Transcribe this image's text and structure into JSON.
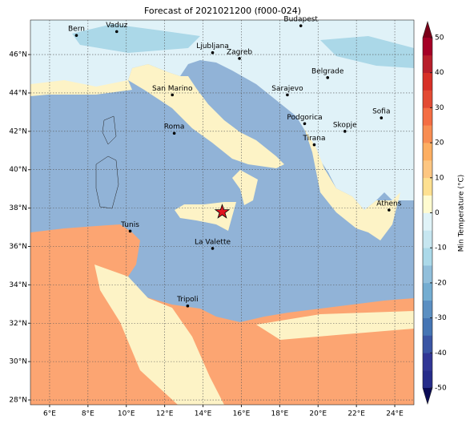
{
  "title": "Forecast of 2021021200 (f000-024)",
  "map": {
    "xlim": [
      5,
      25
    ],
    "ylim": [
      27.75,
      47.8
    ],
    "xticks": [
      {
        "value": 6,
        "label": "6°E"
      },
      {
        "value": 8,
        "label": "8°E"
      },
      {
        "value": 10,
        "label": "10°E"
      },
      {
        "value": 12,
        "label": "12°E"
      },
      {
        "value": 14,
        "label": "14°E"
      },
      {
        "value": 16,
        "label": "16°E"
      },
      {
        "value": 18,
        "label": "18°E"
      },
      {
        "value": 20,
        "label": "20°E"
      },
      {
        "value": 22,
        "label": "22°E"
      },
      {
        "value": 24,
        "label": "24°E"
      }
    ],
    "yticks": [
      {
        "value": 28,
        "label": "28°N"
      },
      {
        "value": 30,
        "label": "30°N"
      },
      {
        "value": 32,
        "label": "32°N"
      },
      {
        "value": 34,
        "label": "34°N"
      },
      {
        "value": 36,
        "label": "36°N"
      },
      {
        "value": 38,
        "label": "38°N"
      },
      {
        "value": 40,
        "label": "40°N"
      },
      {
        "value": 42,
        "label": "42°N"
      },
      {
        "value": 44,
        "label": "44°N"
      },
      {
        "value": 46,
        "label": "46°N"
      }
    ],
    "grid": true,
    "cities": [
      {
        "label": "Bern",
        "lon": 7.4,
        "lat": 47.0
      },
      {
        "label": "Vaduz",
        "lon": 9.5,
        "lat": 47.2
      },
      {
        "label": "Budapest",
        "lon": 19.1,
        "lat": 47.5
      },
      {
        "label": "Ljubljana",
        "lon": 14.5,
        "lat": 46.1
      },
      {
        "label": "Zagreb",
        "lon": 15.9,
        "lat": 45.8
      },
      {
        "label": "Belgrade",
        "lon": 20.5,
        "lat": 44.8
      },
      {
        "label": "San Marino",
        "lon": 12.4,
        "lat": 43.9
      },
      {
        "label": "Sarajevo",
        "lon": 18.4,
        "lat": 43.9
      },
      {
        "label": "Sofia",
        "lon": 23.3,
        "lat": 42.7
      },
      {
        "label": "Podgorica",
        "lon": 19.3,
        "lat": 42.4
      },
      {
        "label": "Skopje",
        "lon": 21.4,
        "lat": 42.0
      },
      {
        "label": "Roma",
        "lon": 12.5,
        "lat": 41.9
      },
      {
        "label": "Tirana",
        "lon": 19.8,
        "lat": 41.3
      },
      {
        "label": "Athens",
        "lon": 23.7,
        "lat": 37.9
      },
      {
        "label": "Tunis",
        "lon": 10.2,
        "lat": 36.8
      },
      {
        "label": "La Valette",
        "lon": 14.5,
        "lat": 35.9
      },
      {
        "label": "Tripoli",
        "lon": 13.2,
        "lat": 32.9
      }
    ],
    "marker": {
      "lon": 15.0,
      "lat": 37.8,
      "color": "#e0141e"
    }
  },
  "colorbar": {
    "label": "Min Temperature (°C)",
    "clim": [
      -50,
      50
    ],
    "ticks": [
      -50,
      -40,
      -30,
      -20,
      -10,
      0,
      10,
      20,
      30,
      40,
      50
    ],
    "colors": [
      "#262c8a",
      "#313695",
      "#3a55a4",
      "#4575b4",
      "#5b8fc2",
      "#74add1",
      "#91bfdb",
      "#abd9e9",
      "#c6e6f0",
      "#e0f3f8",
      "#fffbd0",
      "#fee090",
      "#fdc681",
      "#fdae61",
      "#f88d52",
      "#f46d43",
      "#e34a33",
      "#d73027",
      "#b81e2b",
      "#a50026"
    ],
    "under_color": "#0b0b55",
    "over_color": "#7a0018"
  }
}
